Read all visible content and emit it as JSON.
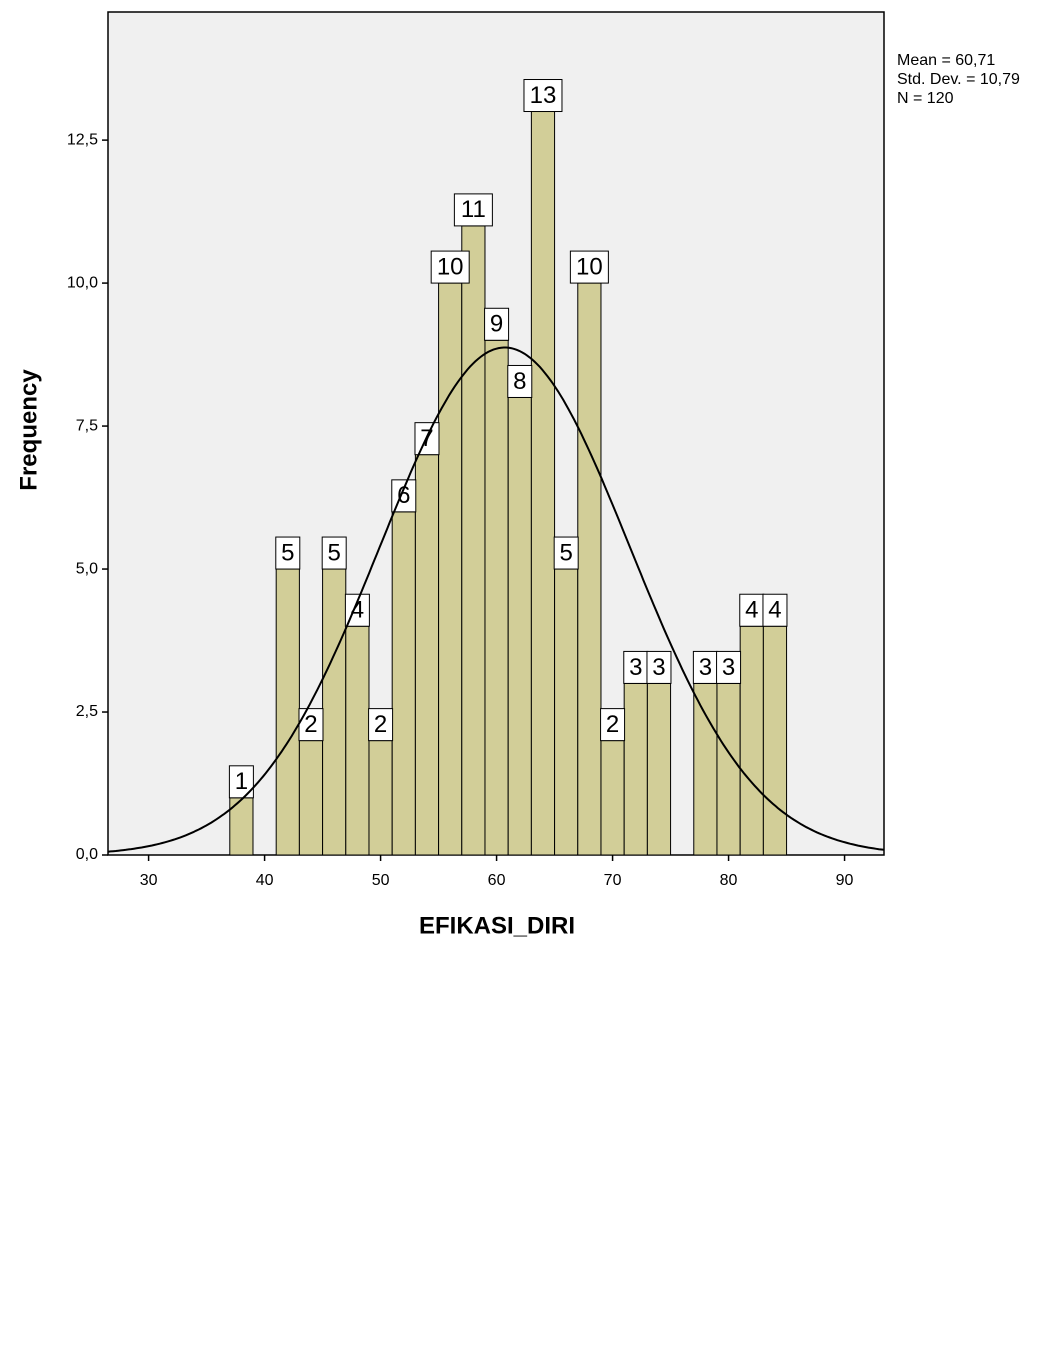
{
  "chart_data": {
    "type": "histogram",
    "x_label": "EFIKASI_DIRI",
    "y_label": "Frequency",
    "bins": [
      37,
      39,
      41,
      43,
      45,
      47,
      49,
      51,
      53,
      55,
      57,
      59,
      61,
      63,
      65,
      67,
      69,
      71,
      73,
      75,
      77,
      79,
      81,
      83,
      85
    ],
    "values": [
      1,
      0,
      5,
      2,
      5,
      4,
      2,
      6,
      7,
      10,
      11,
      9,
      8,
      13,
      5,
      10,
      2,
      3,
      3,
      0,
      3,
      3,
      4,
      4
    ],
    "color": "#d2ce98",
    "xlim": [
      26.5,
      93.4
    ],
    "xticks": [
      30,
      40,
      50,
      60,
      70,
      80,
      90
    ],
    "ylim": [
      0,
      14.74
    ],
    "yticks": [
      {
        "value": 0,
        "label": "0,0"
      },
      {
        "value": 2.5,
        "label": "2,5"
      },
      {
        "value": 5,
        "label": "5,0"
      },
      {
        "value": 7.5,
        "label": "7,5"
      },
      {
        "value": 10,
        "label": "10,0"
      },
      {
        "value": 12.5,
        "label": "12,5"
      }
    ],
    "stats": [
      {
        "value": 60.71,
        "label": "Mean = 60,71"
      },
      {
        "value": 10.79,
        "label": "Std. Dev. = 10,79"
      },
      {
        "value": 120,
        "label": "N = 120"
      }
    ]
  }
}
